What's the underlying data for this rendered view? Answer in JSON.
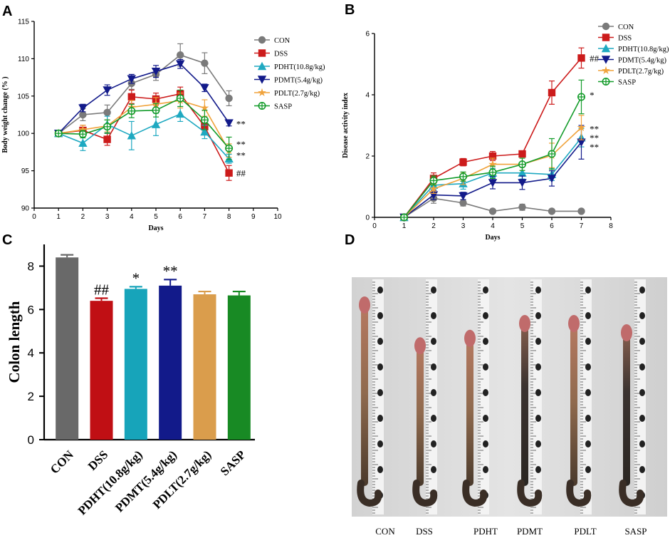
{
  "panels": {
    "A": "A",
    "B": "B",
    "C": "C",
    "D": "D"
  },
  "colors": {
    "CON": "#7a7a7a",
    "DSS": "#cc1b1b",
    "PDHT": "#1fa9c1",
    "PDMT": "#121a8a",
    "PDLT": "#f0a33c",
    "SASP": "#149c2b"
  },
  "legend": [
    {
      "key": "CON",
      "label": "CON",
      "marker": "circle"
    },
    {
      "key": "DSS",
      "label": "DSS",
      "marker": "square"
    },
    {
      "key": "PDHT",
      "label": "PDHT(10.8g/kg)",
      "marker": "triangle-up"
    },
    {
      "key": "PDMT",
      "label": "PDMT(5.4g/kg)",
      "marker": "triangle-down"
    },
    {
      "key": "PDLT",
      "label": "PDLT(2.7g/kg)",
      "marker": "star"
    },
    {
      "key": "SASP",
      "label": "SASP",
      "marker": "circle-plus"
    }
  ],
  "chart_data": [
    {
      "panel": "A",
      "type": "line",
      "title": "",
      "xlabel": "Days",
      "ylabel": "Body weight change (% )",
      "xlim": [
        0,
        10
      ],
      "ylim": [
        90,
        115
      ],
      "xticks": [
        "0",
        "1",
        "2",
        "3",
        "4",
        "5",
        "6",
        "7",
        "8",
        "9",
        "10"
      ],
      "yticks": [
        "90",
        "95",
        "100",
        "105",
        "110",
        "115"
      ],
      "x": [
        1,
        2,
        3,
        4,
        5,
        6,
        7,
        8
      ],
      "series": [
        {
          "name": "CON",
          "values": [
            100,
            102.5,
            102.8,
            106.7,
            107.9,
            110.5,
            109.4,
            104.7
          ],
          "err": [
            0.3,
            0.8,
            1.0,
            0.8,
            0.8,
            1.5,
            1.4,
            1.0
          ]
        },
        {
          "name": "DSS",
          "values": [
            100,
            100.4,
            99.2,
            104.9,
            104.6,
            105.3,
            100.9,
            94.7
          ],
          "err": [
            0.3,
            0.7,
            0.8,
            0.9,
            0.8,
            0.9,
            0.7,
            1.0
          ]
        },
        {
          "name": "PDHT(10.8g/kg)",
          "values": [
            100,
            98.7,
            101.2,
            99.7,
            101.2,
            102.6,
            100.2,
            96.6
          ],
          "err": [
            0.3,
            1.0,
            1.1,
            1.9,
            1.5,
            1.0,
            0.9,
            0.6
          ]
        },
        {
          "name": "PDMT(5.4g/kg)",
          "values": [
            100,
            103.4,
            105.8,
            107.3,
            108.3,
            109.3,
            106.1,
            101.4
          ],
          "err": [
            0.3,
            0.5,
            0.7,
            0.6,
            0.8,
            0.6,
            0.5,
            0.4
          ]
        },
        {
          "name": "PDLT(2.7g/kg)",
          "values": [
            100,
            100.5,
            101.0,
            103.5,
            103.9,
            104.4,
            103.4,
            97.7
          ],
          "err": [
            0.3,
            0.6,
            0.8,
            0.9,
            0.9,
            1.0,
            1.1,
            0.9
          ]
        },
        {
          "name": "SASP",
          "values": [
            100,
            99.9,
            100.9,
            103.0,
            103.1,
            104.7,
            101.8,
            98.0
          ],
          "err": [
            0.3,
            0.5,
            0.9,
            0.9,
            0.9,
            1.1,
            1.3,
            1.5
          ]
        }
      ],
      "annotations": [
        {
          "text": "**",
          "x": 8.3,
          "y": 101.3
        },
        {
          "text": "**",
          "x": 8.3,
          "y": 98.6
        },
        {
          "text": "**",
          "x": 8.3,
          "y": 97.1
        },
        {
          "text": "##",
          "x": 8.3,
          "y": 94.7
        }
      ]
    },
    {
      "panel": "B",
      "type": "line",
      "title": "",
      "xlabel": "Days",
      "ylabel": "Disease activity index",
      "xlim": [
        0,
        8
      ],
      "ylim": [
        0,
        6
      ],
      "xticks": [
        "0",
        "1",
        "2",
        "3",
        "4",
        "5",
        "6",
        "7",
        "8"
      ],
      "yticks": [
        "0",
        "2",
        "4",
        "6"
      ],
      "x": [
        1,
        2,
        3,
        4,
        5,
        6,
        7
      ],
      "series": [
        {
          "name": "CON",
          "values": [
            0,
            0.62,
            0.47,
            0.2,
            0.33,
            0.2,
            0.2
          ],
          "err": [
            0.03,
            0.16,
            0.1,
            0.05,
            0.1,
            0.05,
            0.05
          ]
        },
        {
          "name": "DSS",
          "values": [
            0,
            1.27,
            1.8,
            2.0,
            2.07,
            4.07,
            5.2
          ],
          "err": [
            0.03,
            0.18,
            0.12,
            0.15,
            0.1,
            0.38,
            0.33
          ]
        },
        {
          "name": "PDHT(10.8g/kg)",
          "values": [
            0,
            1.05,
            1.1,
            1.45,
            1.45,
            1.4,
            2.6
          ],
          "err": [
            0.03,
            0.15,
            0.18,
            0.15,
            0.2,
            0.2,
            0.3
          ]
        },
        {
          "name": "PDMT(5.4g/kg)",
          "values": [
            0,
            0.73,
            0.7,
            1.13,
            1.13,
            1.27,
            2.45
          ],
          "err": [
            0.03,
            0.15,
            0.12,
            0.2,
            0.22,
            0.25,
            0.55
          ]
        },
        {
          "name": "PDLT(2.7g/kg)",
          "values": [
            0,
            0.93,
            1.27,
            1.73,
            1.73,
            2.02,
            2.93
          ],
          "err": [
            0.03,
            0.15,
            0.2,
            0.2,
            0.2,
            0.4,
            0.4
          ]
        },
        {
          "name": "SASP",
          "values": [
            0,
            1.2,
            1.33,
            1.47,
            1.73,
            2.07,
            3.93
          ],
          "err": [
            0.03,
            0.15,
            0.15,
            0.2,
            0.2,
            0.5,
            0.55
          ]
        }
      ],
      "annotations": [
        {
          "text": "##",
          "x": 7.28,
          "y": 5.2
        },
        {
          "text": "*",
          "x": 7.28,
          "y": 4.0
        },
        {
          "text": "**",
          "x": 7.28,
          "y": 2.9
        },
        {
          "text": "**",
          "x": 7.28,
          "y": 2.6
        },
        {
          "text": "**",
          "x": 7.28,
          "y": 2.3
        }
      ]
    },
    {
      "panel": "C",
      "type": "bar",
      "title": "",
      "xlabel": "",
      "ylabel": "Colon length",
      "ylim": [
        0,
        9
      ],
      "yticks": [
        "0",
        "2",
        "4",
        "6",
        "8"
      ],
      "categories": [
        "CON",
        "DSS",
        "PDHT(10.8g/kg)",
        "PDMT(5.4g/kg)",
        "PDLT(2.7g/kg)",
        "SASP"
      ],
      "values": [
        8.4,
        6.4,
        6.95,
        7.1,
        6.7,
        6.65
      ],
      "err": [
        0.12,
        0.12,
        0.1,
        0.28,
        0.13,
        0.18
      ],
      "bar_colors": [
        "#696969",
        "#c00f14",
        "#17a4ba",
        "#121a8a",
        "#da9d4c",
        "#188a24"
      ],
      "annotations": [
        "",
        "##",
        "*",
        "**",
        "",
        ""
      ]
    }
  ],
  "photo": {
    "labels": [
      "CON",
      "DSS",
      "PDHT",
      "PDMT",
      "PDLT",
      "SASP"
    ]
  }
}
